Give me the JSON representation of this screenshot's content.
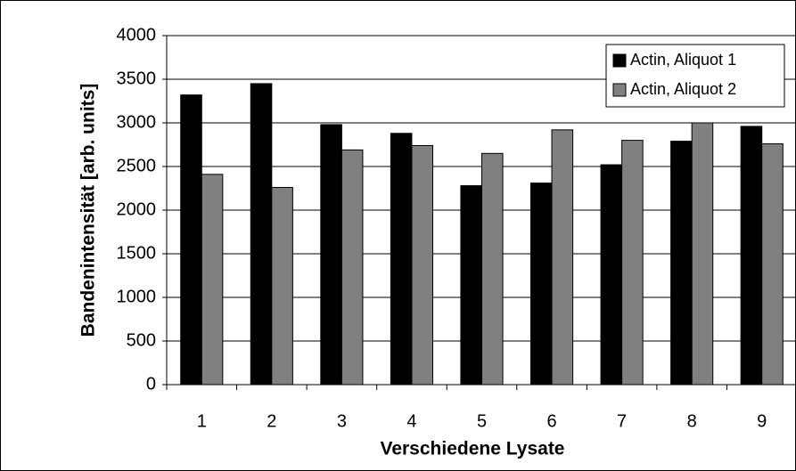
{
  "chart_data": {
    "type": "bar",
    "x_label": "Verschiedene Lysate",
    "y_label": "Bandenintensität [arb. units]",
    "categories": [
      "1",
      "2",
      "3",
      "4",
      "5",
      "6",
      "7",
      "8",
      "9"
    ],
    "series": [
      {
        "name": "Actin, Aliquot 1",
        "color": "#000000",
        "values": [
          3320,
          3450,
          2980,
          2880,
          2280,
          2310,
          2520,
          2790,
          2960
        ]
      },
      {
        "name": "Actin, Aliquot 2",
        "color": "#808080",
        "values": [
          2410,
          2260,
          2690,
          2740,
          2650,
          2920,
          2800,
          3000,
          2760
        ]
      }
    ],
    "ylim": [
      0,
      4000
    ],
    "yticks": [
      0,
      500,
      1000,
      1500,
      2000,
      2500,
      3000,
      3500,
      4000
    ],
    "grid": true,
    "legend": "upper right"
  }
}
